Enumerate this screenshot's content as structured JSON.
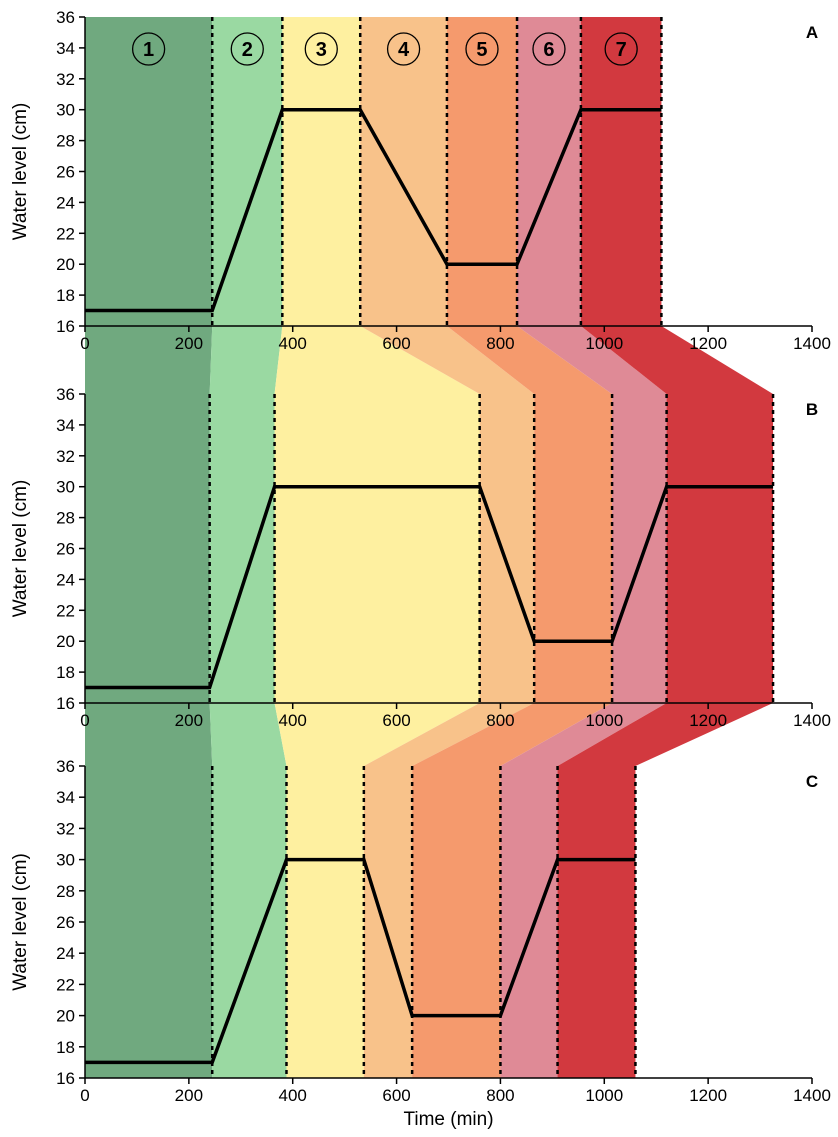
{
  "chart_data": {
    "type": "line",
    "x_axis_label": "Time (min)",
    "xlim": [
      0,
      1400
    ],
    "x_ticks": [
      0,
      200,
      400,
      600,
      800,
      1000,
      1200,
      1400
    ],
    "y_ticks": [
      16,
      18,
      20,
      22,
      24,
      26,
      28,
      30,
      32,
      34,
      36
    ],
    "phase_colors": [
      "#70a97f",
      "#9ad9a2",
      "#fef0a0",
      "#f8c28a",
      "#f59a6d",
      "#df8a96",
      "#d2393f"
    ],
    "phase_labels": [
      "1",
      "2",
      "3",
      "4",
      "5",
      "6",
      "7"
    ],
    "panels": [
      {
        "label": "A",
        "ylabel": "Water level (cm)",
        "ylim": [
          16,
          36
        ],
        "phase_boundaries": [
          0,
          245,
          380,
          530,
          697,
          832,
          955,
          1110
        ],
        "series": {
          "x": [
            0,
            245,
            380,
            530,
            697,
            832,
            955,
            1110
          ],
          "y": [
            17,
            17,
            30,
            30,
            20,
            20,
            30,
            30
          ]
        }
      },
      {
        "label": "B",
        "ylabel": "Water level (cm)",
        "ylim": [
          16,
          36
        ],
        "phase_boundaries": [
          0,
          240,
          365,
          760,
          865,
          1015,
          1120,
          1325
        ],
        "series": {
          "x": [
            0,
            240,
            365,
            760,
            865,
            1015,
            1120,
            1325
          ],
          "y": [
            17,
            17,
            30,
            30,
            20,
            20,
            30,
            30
          ]
        }
      },
      {
        "label": "C",
        "ylabel": "Water level (cm)",
        "ylim": [
          16,
          36
        ],
        "phase_boundaries": [
          0,
          245,
          388,
          537,
          630,
          800,
          910,
          1060
        ],
        "series": {
          "x": [
            0,
            245,
            388,
            537,
            630,
            800,
            910,
            1060
          ],
          "y": [
            17,
            17,
            30,
            30,
            20,
            20,
            30,
            30
          ]
        }
      }
    ]
  }
}
